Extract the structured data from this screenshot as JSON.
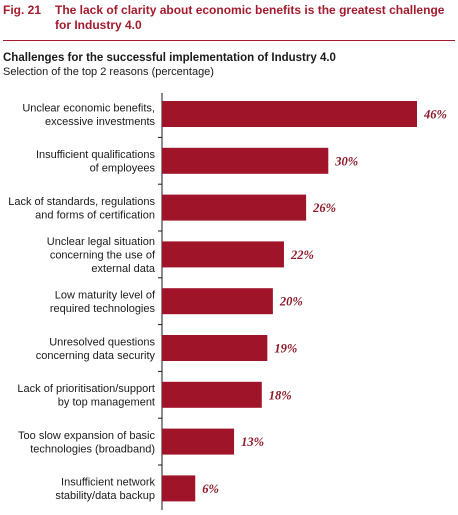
{
  "figure": {
    "number": "Fig. 21",
    "title": "The lack of clarity about economic benefits is the greatest challenge for Industry 4.0"
  },
  "colors": {
    "bar": "#a0142a",
    "accent": "#a31b2d",
    "value_text": "#8b1a2b"
  },
  "chart_data": {
    "type": "bar",
    "orientation": "horizontal",
    "title": "Challenges for the successful implementation of Industry 4.0",
    "subtitle": "Selection of the top 2 reasons (percentage)",
    "xlabel": "",
    "ylabel": "",
    "xlim": [
      0,
      46
    ],
    "grid": false,
    "categories": [
      "Unclear economic benefits, excessive investments",
      "Insufficient qualifications of employees",
      "Lack of standards, regulations and forms of certification",
      "Unclear legal situation concerning the use of external data",
      "Low maturity level of required technologies",
      "Unresolved questions concerning data security",
      "Lack of prioritisation/support by top management",
      "Too slow expansion of basic technologies (broadband)",
      "Insufficient network stability/data backup"
    ],
    "category_lines": [
      [
        "Unclear economic benefits,",
        "excessive investments"
      ],
      [
        "Insufficient qualifications",
        "of employees"
      ],
      [
        "Lack of standards, regulations",
        "and forms of certification"
      ],
      [
        "Unclear legal situation",
        "concerning the use of",
        "external data"
      ],
      [
        "Low maturity level of",
        "required technologies"
      ],
      [
        "Unresolved questions",
        "concerning data security"
      ],
      [
        "Lack of prioritisation/support",
        "by top management"
      ],
      [
        "Too slow expansion of basic",
        "technologies (broadband)"
      ],
      [
        "Insufficient network",
        "stability/data backup"
      ]
    ],
    "values": [
      46,
      30,
      26,
      22,
      20,
      19,
      18,
      13,
      6
    ],
    "value_labels": [
      "46%",
      "30%",
      "26%",
      "22%",
      "20%",
      "19%",
      "18%",
      "13%",
      "6%"
    ]
  }
}
